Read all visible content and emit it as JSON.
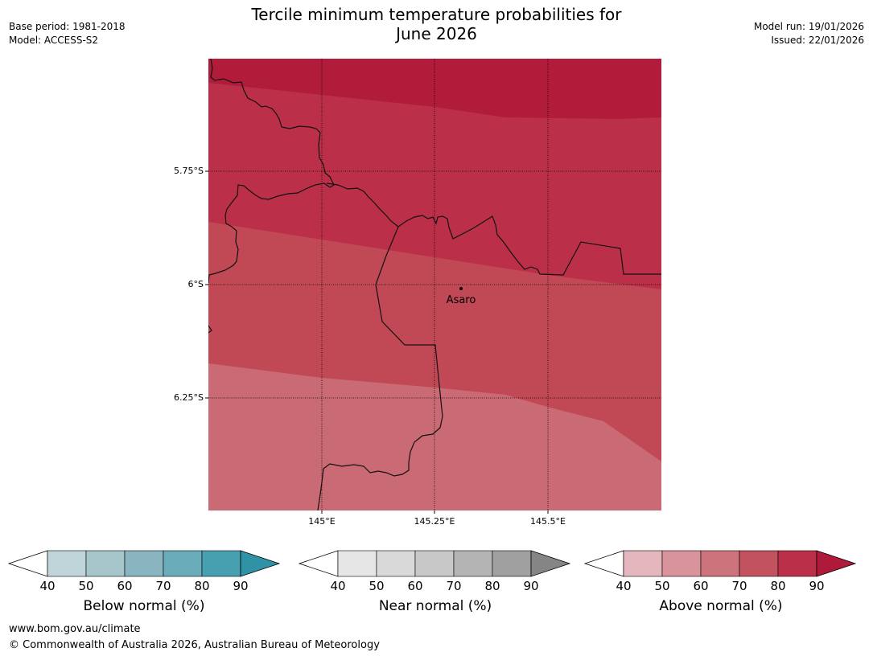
{
  "title_line1": "Tercile minimum temperature probabilities for",
  "title_line2": "June 2026",
  "base_period": "Base period: 1981-2018",
  "model": "Model: ACCESS-S2",
  "model_run": "Model run: 19/01/2026",
  "issued": "Issued: 22/01/2026",
  "map": {
    "lat_labels": [
      "5.75°S",
      "6°S",
      "6.25°S"
    ],
    "lon_labels": [
      "145°E",
      "145.25°E",
      "145.5°E"
    ],
    "place": "Asaro",
    "region_colors": [
      "#b01c3a",
      "#bb3048",
      "#c04955",
      "#ca6a74"
    ]
  },
  "colorbars": [
    {
      "title": "Below normal (%)",
      "ticks": [
        "40",
        "50",
        "60",
        "70",
        "80",
        "90"
      ],
      "colors": [
        "#bfd5da",
        "#a6c6cc",
        "#88b5c0",
        "#6aacba",
        "#46a0b0"
      ],
      "arrow_color": "#2f93a5"
    },
    {
      "title": "Near normal (%)",
      "ticks": [
        "40",
        "50",
        "60",
        "70",
        "80",
        "90"
      ],
      "colors": [
        "#e6e6e6",
        "#d9d9d9",
        "#c8c8c8",
        "#b4b4b4",
        "#a0a0a0"
      ],
      "arrow_color": "#858585"
    },
    {
      "title": "Above normal (%)",
      "ticks": [
        "40",
        "50",
        "60",
        "70",
        "80",
        "90"
      ],
      "colors": [
        "#e4b6bd",
        "#d8939b",
        "#cc737b",
        "#c3525f",
        "#ba3048"
      ],
      "arrow_color": "#b01a3a"
    }
  ],
  "footer_line1": "www.bom.gov.au/climate",
  "footer_line2": "© Commonwealth of Australia 2026, Australian Bureau of Meteorology"
}
